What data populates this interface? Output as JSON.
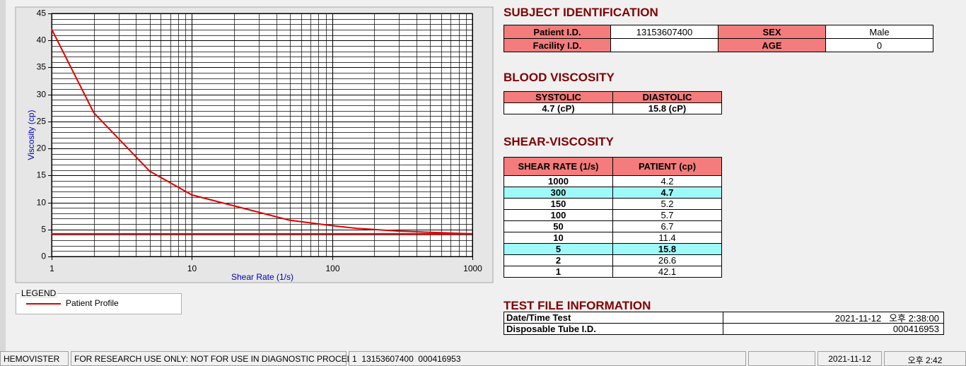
{
  "chart_data": {
    "type": "line",
    "xlabel": "Shear Rate (1/s)",
    "ylabel": "Viscosity (cp)",
    "xscale": "log",
    "xlim": [
      1,
      1000
    ],
    "xticks": [
      1,
      10,
      100,
      1000
    ],
    "ylim": [
      0,
      45
    ],
    "yticks": [
      0,
      5,
      10,
      15,
      20,
      25,
      30,
      35,
      40,
      45
    ],
    "grid": true,
    "legend_title": "LEGEND",
    "series": [
      {
        "name": "Patient Profile",
        "color": "#e00000",
        "x": [
          1000,
          300,
          150,
          100,
          50,
          10,
          5,
          2,
          1
        ],
        "values": [
          4.2,
          4.7,
          5.2,
          5.7,
          6.7,
          11.4,
          15.8,
          26.6,
          42.1
        ]
      },
      {
        "color": "#e00000",
        "x": [
          1,
          1000
        ],
        "values": [
          4.2,
          4.2
        ]
      }
    ]
  },
  "subject": {
    "title": "SUBJECT IDENTIFICATION",
    "rows": [
      {
        "label": "Patient I.D.",
        "value": "13153607400",
        "label2": "SEX",
        "value2": "Male"
      },
      {
        "label": "Facility I.D.",
        "label2": "AGE",
        "value2": "0"
      }
    ]
  },
  "blood_viscosity": {
    "title": "BLOOD VISCOSITY",
    "headers": [
      "SYSTOLIC",
      "DIASTOLIC"
    ],
    "values": [
      "4.7 (cP)",
      "15.8 (cP)"
    ]
  },
  "shear_viscosity": {
    "title": "SHEAR-VISCOSITY",
    "headers": [
      "SHEAR RATE (1/s)",
      "PATIENT (cp)"
    ],
    "highlight_rows": [
      1,
      6
    ],
    "highlight_color": "#9ff9f9"
  },
  "test_file": {
    "title": "TEST FILE INFORMATION",
    "rows": [
      {
        "label": "Date/Time Test",
        "value": "2021-11-12   오후 2:38:00"
      },
      {
        "label": "Disposable Tube I.D.",
        "value": "000416953"
      }
    ]
  },
  "status_bar": {
    "app": "HEMOVISTER",
    "notice": "FOR RESEARCH USE ONLY: NOT FOR USE IN DIAGNOSTIC PROCEDURES",
    "file": "1  13153607400  000416953",
    "date": "2021-11-12",
    "time": "오후 2:42"
  }
}
